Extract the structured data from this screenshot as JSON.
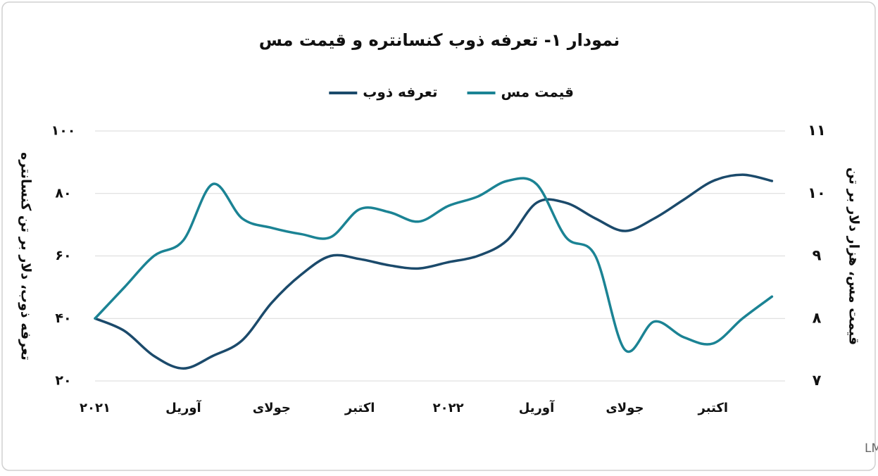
{
  "chart_data": {
    "type": "line",
    "title": "نمودار ۱- تعرفه ذوب کنسانتره و قیمت مس",
    "y_label": "تعرفه ذوب، دلار بر تن کنسانتره",
    "y2_label": "قیمت مس، هزار دلار بر تن",
    "source": "منبع: Fastmarkets و LME",
    "categories": [
      "۲۰۲۱",
      null,
      null,
      "آوریل",
      null,
      null,
      "جولای",
      null,
      null,
      "اکتبر",
      null,
      null,
      "۲۰۲۲",
      null,
      null,
      "آوریل",
      null,
      null,
      "جولای",
      null,
      null,
      "اکتبر",
      null,
      null
    ],
    "series": [
      {
        "name": "تعرفه ذوب",
        "color": "#1b4a6b",
        "values": [
          40,
          36,
          28,
          24,
          28,
          33,
          45,
          54,
          60,
          59,
          57,
          56,
          58,
          60,
          65,
          77,
          77,
          72,
          68,
          72,
          78,
          84,
          86,
          84
        ]
      },
      {
        "name": "قیمت مس",
        "color": "#1b8394",
        "axis": "y2",
        "values": [
          8.0,
          8.5,
          9.0,
          9.25,
          10.15,
          9.6,
          9.45,
          9.35,
          9.3,
          9.75,
          9.7,
          9.55,
          9.8,
          9.95,
          10.2,
          10.15,
          9.3,
          9.0,
          7.5,
          7.95,
          7.7,
          7.6,
          8.0,
          8.35
        ]
      }
    ],
    "ylim": [
      20,
      100
    ],
    "yticks": [
      {
        "value": 20,
        "label": "۲۰"
      },
      {
        "value": 40,
        "label": "۴۰"
      },
      {
        "value": 60,
        "label": "۶۰"
      },
      {
        "value": 80,
        "label": "۸۰"
      },
      {
        "value": 100,
        "label": "۱۰۰"
      }
    ],
    "y2lim": [
      7,
      11
    ],
    "y2ticks": [
      {
        "value": 7,
        "label": "۷"
      },
      {
        "value": 8,
        "label": "۸"
      },
      {
        "value": 9,
        "label": "۹"
      },
      {
        "value": 10,
        "label": "۱۰"
      },
      {
        "value": 11,
        "label": "۱۱"
      }
    ],
    "grid": true
  }
}
